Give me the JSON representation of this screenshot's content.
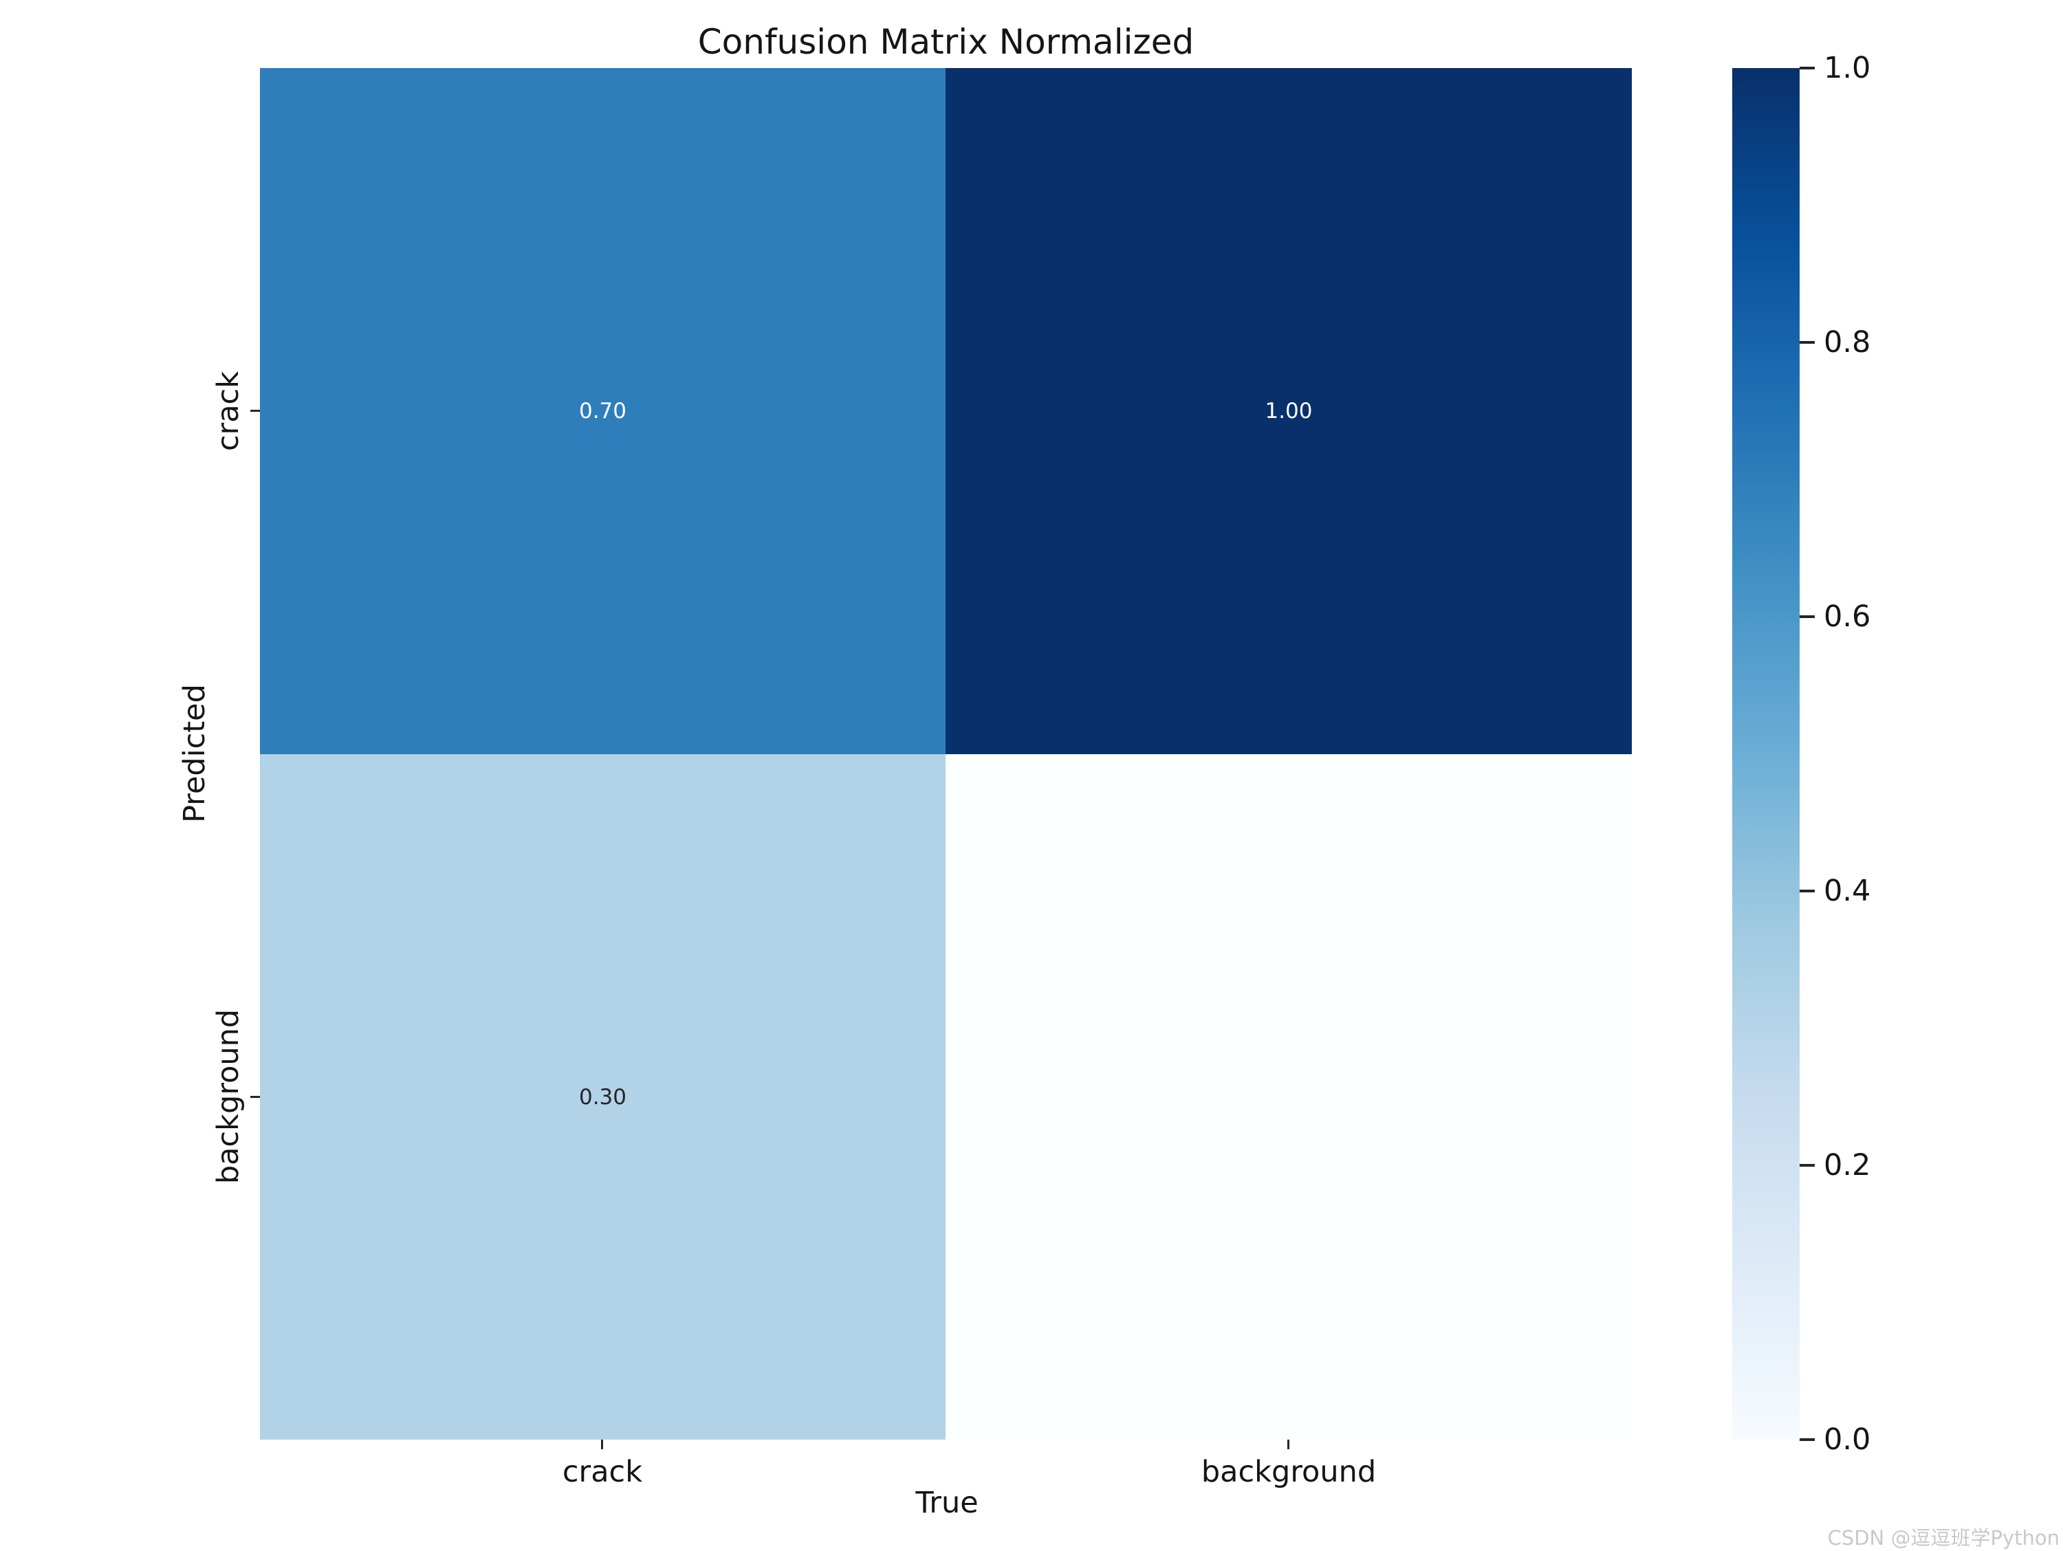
{
  "chart_data": {
    "type": "heatmap",
    "title": "Confusion Matrix Normalized",
    "xlabel": "True",
    "ylabel": "Predicted",
    "x_categories": [
      "crack",
      "background"
    ],
    "y_categories": [
      "crack",
      "background"
    ],
    "matrix": [
      [
        0.7,
        1.0
      ],
      [
        0.3,
        null
      ]
    ],
    "annotations": [
      [
        "0.70",
        "1.00"
      ],
      [
        "0.30",
        ""
      ]
    ],
    "cell_colors": [
      [
        "#2f7ebc",
        "#08306b"
      ],
      [
        "#b2d2e8",
        "#fdfeff"
      ]
    ],
    "annotation_colors": [
      [
        "#ffffff",
        "#ffffff"
      ],
      [
        "#262626",
        "#262626"
      ]
    ],
    "colormap": "Blues",
    "grid": false,
    "colorbar": {
      "position": "right",
      "ticks": [
        "1.0",
        "0.8",
        "0.6",
        "0.4",
        "0.2",
        "0.0"
      ],
      "range": [
        0.0,
        1.0
      ],
      "gradient_stops_bottom_to_top": [
        "#f7fbff",
        "#deebf7",
        "#c6dbef",
        "#9ecae1",
        "#6baed6",
        "#4292c6",
        "#2171b5",
        "#08519c",
        "#08306b"
      ]
    }
  },
  "watermark": "CSDN @逗逗班学Python"
}
